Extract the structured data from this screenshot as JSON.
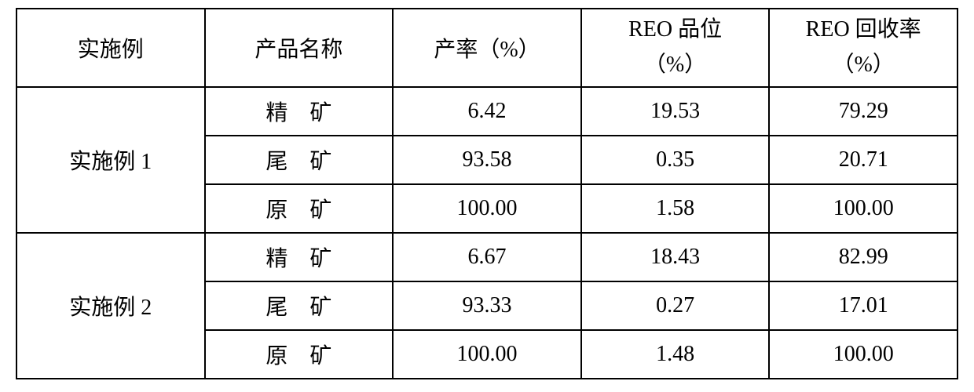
{
  "table": {
    "type": "table",
    "border_color": "#000000",
    "background_color": "#ffffff",
    "text_color": "#000000",
    "font_size_pt": 21,
    "columns": [
      {
        "header_line1": "实施例",
        "header_line2": ""
      },
      {
        "header_line1": "产品名称",
        "header_line2": ""
      },
      {
        "header_line1": "产率（%）",
        "header_line2": ""
      },
      {
        "header_line1": "REO 品位",
        "header_line2": "（%）"
      },
      {
        "header_line1": "REO 回收率",
        "header_line2": "（%）"
      }
    ],
    "groups": [
      {
        "label": "实施例 1",
        "rows": [
          {
            "product": "精矿",
            "yield": "6.42",
            "grade": "19.53",
            "recovery": "79.29"
          },
          {
            "product": "尾矿",
            "yield": "93.58",
            "grade": "0.35",
            "recovery": "20.71"
          },
          {
            "product": "原矿",
            "yield": "100.00",
            "grade": "1.58",
            "recovery": "100.00"
          }
        ]
      },
      {
        "label": "实施例 2",
        "rows": [
          {
            "product": "精矿",
            "yield": "6.67",
            "grade": "18.43",
            "recovery": "82.99"
          },
          {
            "product": "尾矿",
            "yield": "93.33",
            "grade": "0.27",
            "recovery": "17.01"
          },
          {
            "product": "原矿",
            "yield": "100.00",
            "grade": "1.48",
            "recovery": "100.00"
          }
        ]
      }
    ]
  }
}
